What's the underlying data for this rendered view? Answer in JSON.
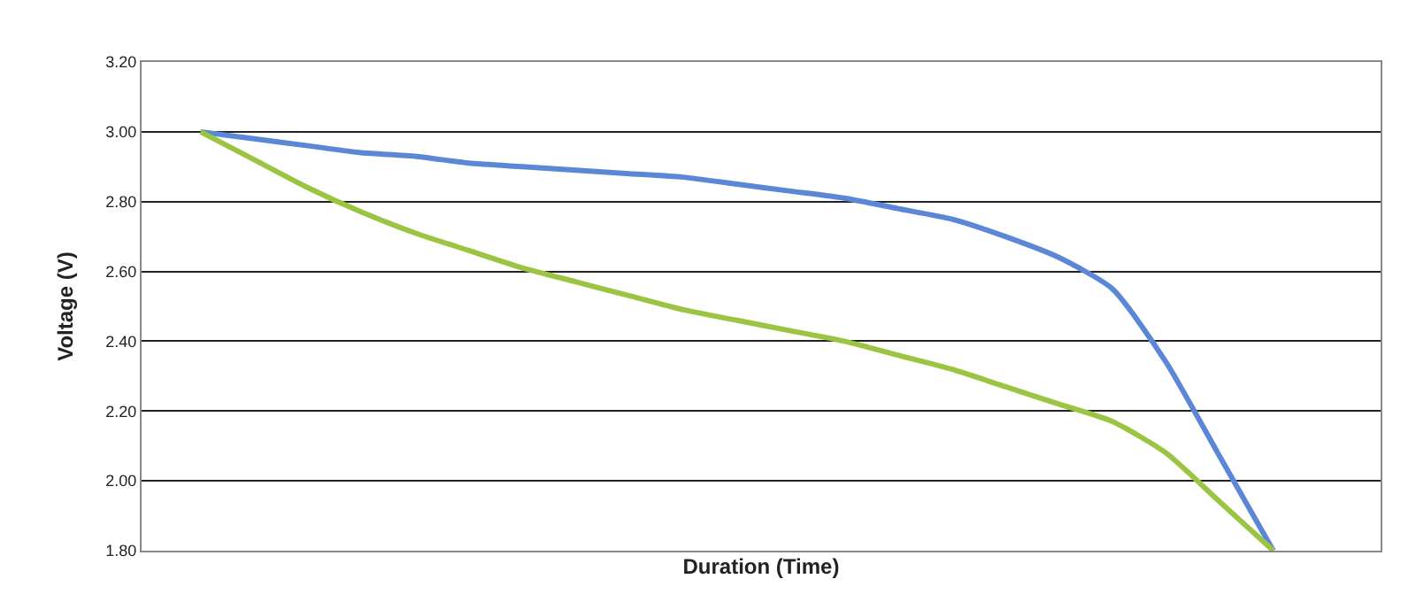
{
  "chart_data": {
    "type": "line",
    "xlabel": "Duration (Time)",
    "ylabel": "Voltage (V)",
    "categories": [
      null,
      null,
      null,
      null,
      null,
      null,
      null,
      null,
      null,
      null,
      null,
      null,
      null,
      null,
      null,
      null,
      null,
      null,
      null,
      null,
      null
    ],
    "series": [
      {
        "color": "#5b87d6",
        "values": [
          3.0,
          2.98,
          2.96,
          2.94,
          2.93,
          2.91,
          2.9,
          2.89,
          2.88,
          2.87,
          2.85,
          2.83,
          2.81,
          2.78,
          2.75,
          2.7,
          2.64,
          2.55,
          2.34,
          2.07,
          1.8
        ]
      },
      {
        "color": "#9bc443",
        "values": [
          3.0,
          2.92,
          2.84,
          2.77,
          2.71,
          2.66,
          2.61,
          2.57,
          2.53,
          2.49,
          2.46,
          2.43,
          2.4,
          2.36,
          2.32,
          2.27,
          2.22,
          2.17,
          2.08,
          1.94,
          1.8
        ]
      }
    ],
    "ylim": [
      1.8,
      3.2
    ],
    "yticks": [
      {
        "value": 1.8,
        "label": "1.80"
      },
      {
        "value": 2.0,
        "label": "2.00"
      },
      {
        "value": 2.2,
        "label": "2.20"
      },
      {
        "value": 2.4,
        "label": "2.40"
      },
      {
        "value": 2.6,
        "label": "2.60"
      },
      {
        "value": 2.8,
        "label": "2.80"
      },
      {
        "value": 3.0,
        "label": "3.00"
      },
      {
        "value": 3.2,
        "label": "3.20"
      }
    ],
    "grid": "y",
    "marker": "none",
    "line_style": "solid",
    "tick_labels": "y"
  }
}
